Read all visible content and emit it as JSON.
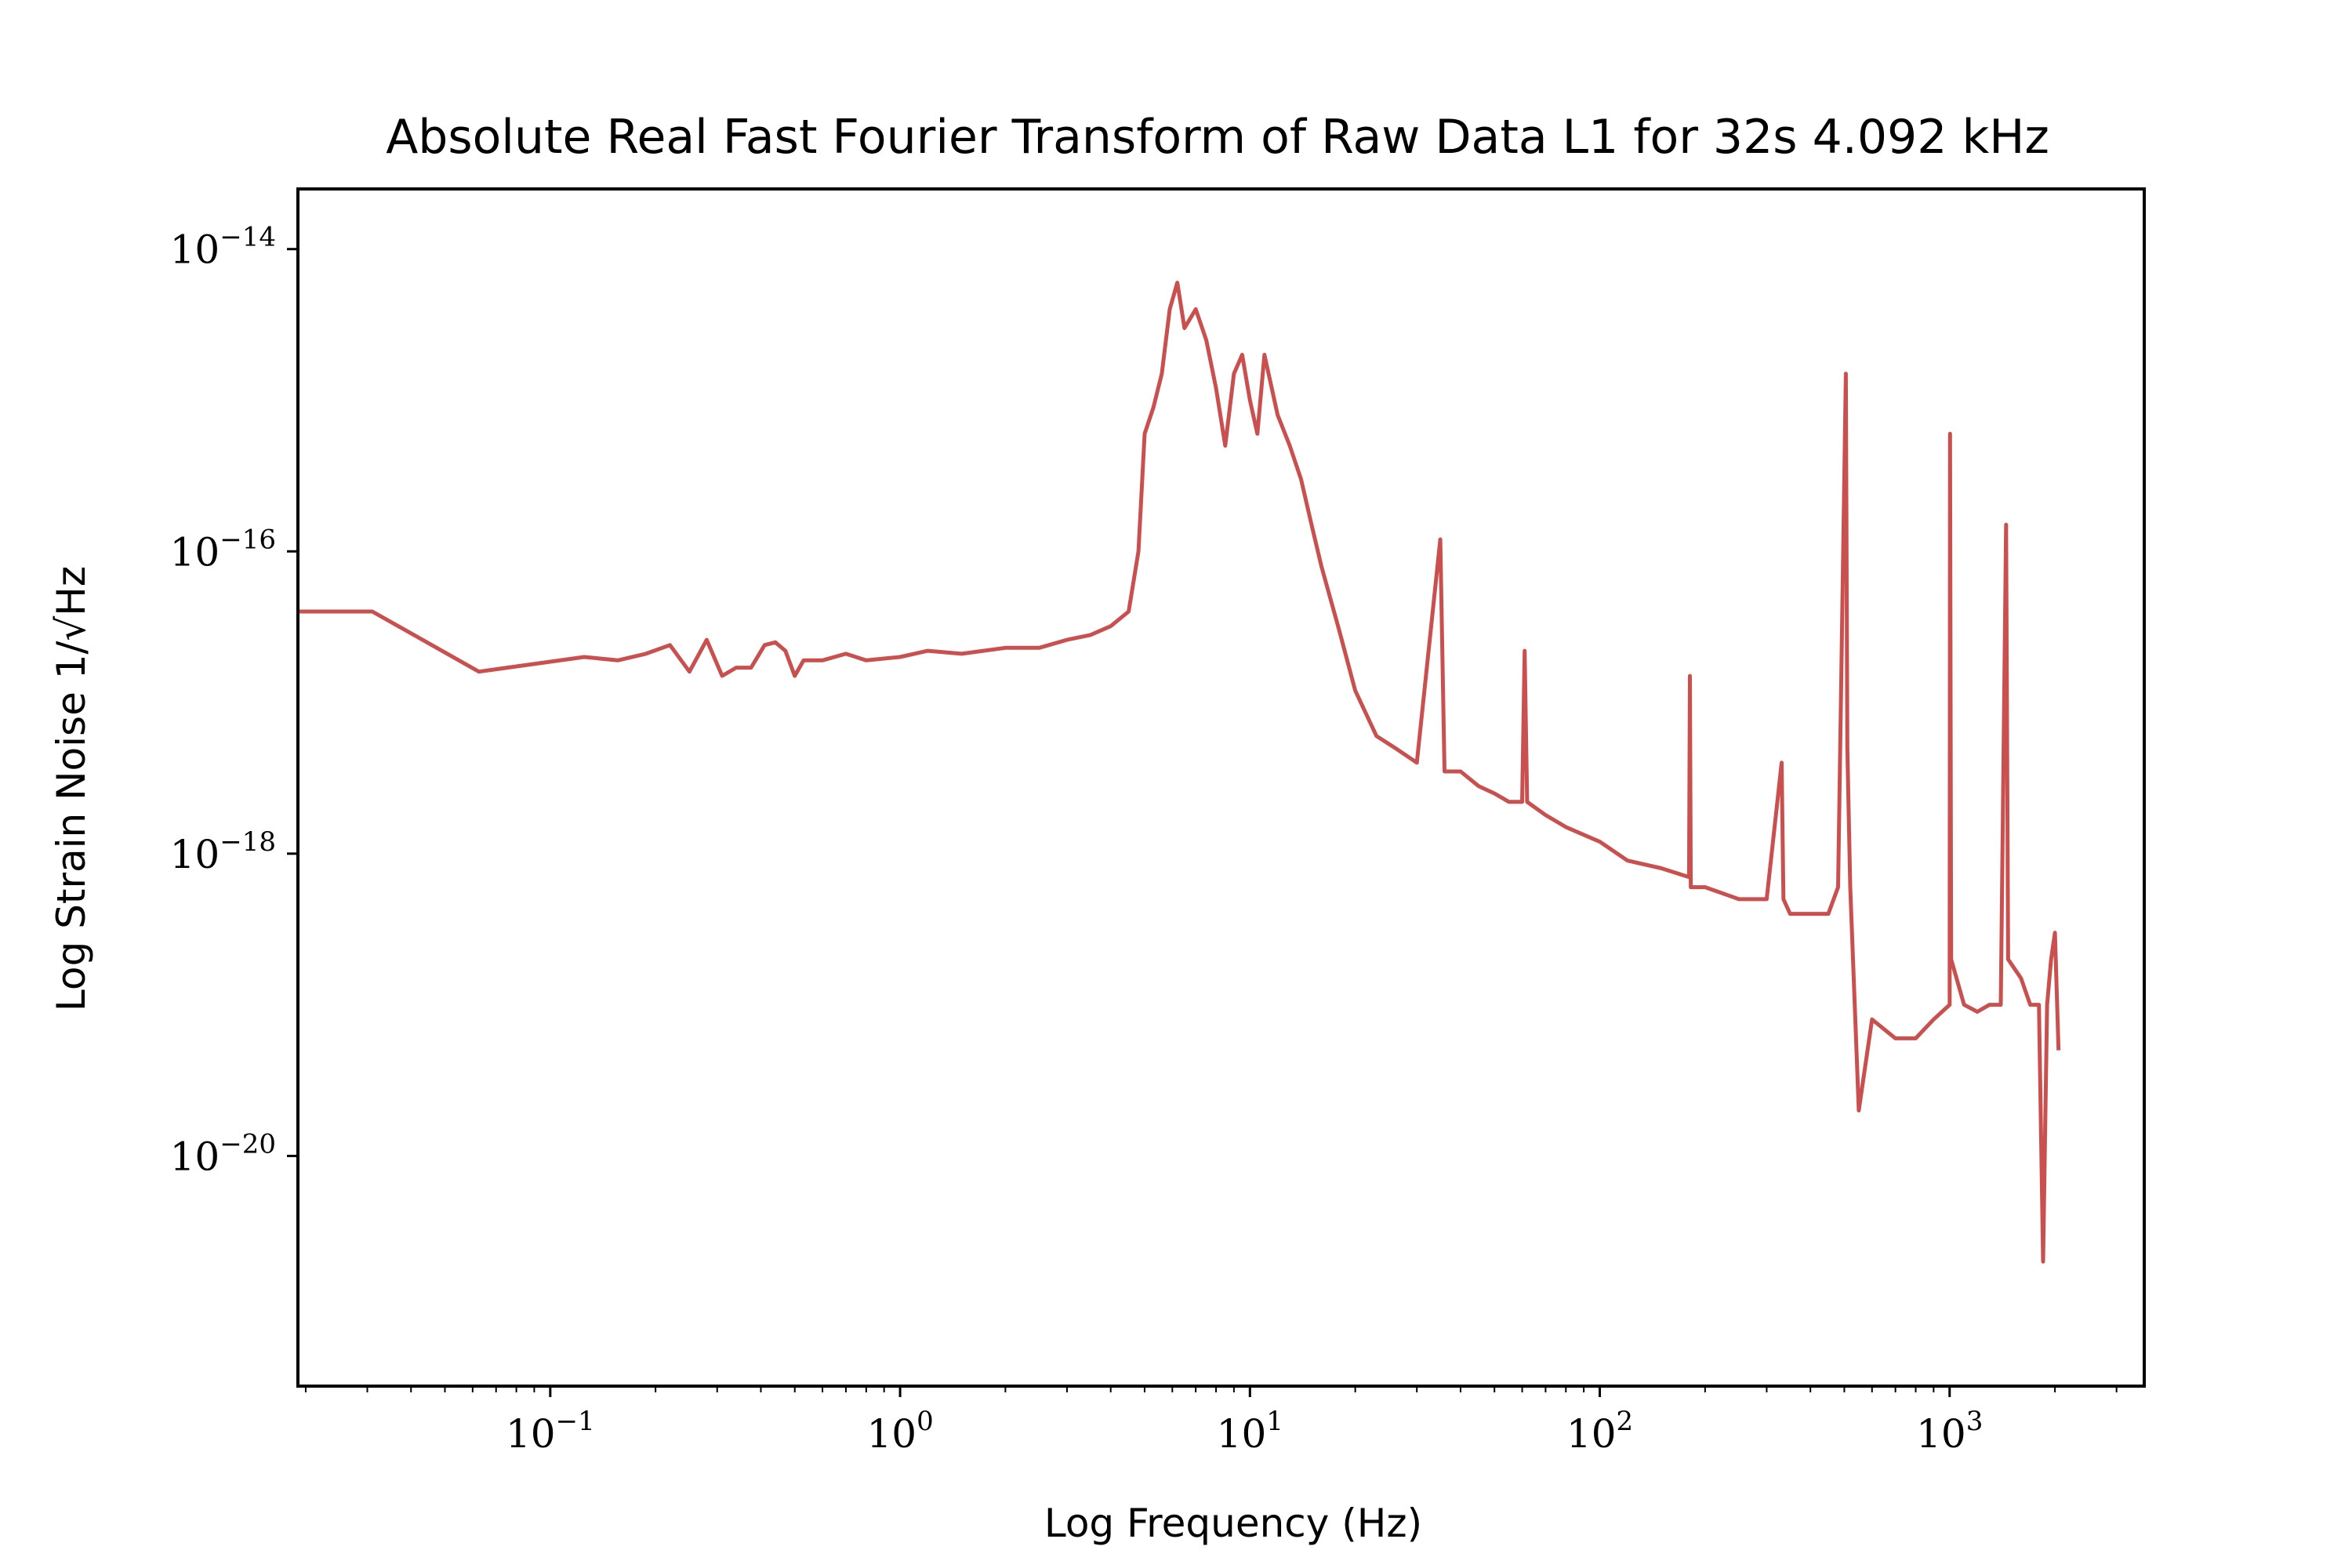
{
  "chart_data": {
    "type": "line",
    "title": "Absolute Real Fast Fourier Transform of Raw Data L1 for 32s 4.092 kHz",
    "xlabel": "Log Frequency (Hz)",
    "ylabel": "Log Strain Noise 1/√Hz",
    "x_scale": "log",
    "y_scale": "log",
    "xlim": [
      0.019,
      3600
    ],
    "ylim": [
      3e-22,
      2.5e-14
    ],
    "grid": false,
    "x_ticks": [
      {
        "value": 0.1,
        "base": "10",
        "exp": "−1"
      },
      {
        "value": 1,
        "base": "10",
        "exp": "0"
      },
      {
        "value": 10,
        "base": "10",
        "exp": "1"
      },
      {
        "value": 100,
        "base": "10",
        "exp": "2"
      },
      {
        "value": 1000,
        "base": "10",
        "exp": "3"
      }
    ],
    "y_ticks": [
      {
        "value": 1e-14,
        "base": "10",
        "exp": "−14"
      },
      {
        "value": 1e-16,
        "base": "10",
        "exp": "−16"
      },
      {
        "value": 1e-18,
        "base": "10",
        "exp": "−18"
      },
      {
        "value": 1e-20,
        "base": "10",
        "exp": "−20"
      }
    ],
    "series": [
      {
        "color": "#c9504f",
        "points": [
          [
            0.019,
            4e-17
          ],
          [
            0.031,
            4e-17
          ],
          [
            0.0625,
            1.6e-17
          ],
          [
            0.125,
            2e-17
          ],
          [
            0.156,
            1.9e-17
          ],
          [
            0.1875,
            2.1e-17
          ],
          [
            0.22,
            2.4e-17
          ],
          [
            0.25,
            1.6e-17
          ],
          [
            0.28,
            2.6e-17
          ],
          [
            0.31,
            1.5e-17
          ],
          [
            0.34,
            1.7e-17
          ],
          [
            0.375,
            1.7e-17
          ],
          [
            0.41,
            2.4e-17
          ],
          [
            0.44,
            2.5e-17
          ],
          [
            0.47,
            2.2e-17
          ],
          [
            0.5,
            1.5e-17
          ],
          [
            0.53,
            1.9e-17
          ],
          [
            0.6,
            1.9e-17
          ],
          [
            0.7,
            2.1e-17
          ],
          [
            0.8,
            1.9e-17
          ],
          [
            1.0,
            2e-17
          ],
          [
            1.2,
            2.2e-17
          ],
          [
            1.5,
            2.1e-17
          ],
          [
            2.0,
            2.3e-17
          ],
          [
            2.5,
            2.3e-17
          ],
          [
            3.0,
            2.6e-17
          ],
          [
            3.5,
            2.8e-17
          ],
          [
            4.0,
            3.2e-17
          ],
          [
            4.5,
            4e-17
          ],
          [
            4.8,
            1e-16
          ],
          [
            5.0,
            6e-16
          ],
          [
            5.3,
            9e-16
          ],
          [
            5.6,
            1.5e-15
          ],
          [
            5.9,
            4e-15
          ],
          [
            6.2,
            6e-15
          ],
          [
            6.5,
            3e-15
          ],
          [
            7.0,
            4e-15
          ],
          [
            7.5,
            2.5e-15
          ],
          [
            8.0,
            1.2e-15
          ],
          [
            8.5,
            5e-16
          ],
          [
            9.0,
            1.5e-15
          ],
          [
            9.5,
            2e-15
          ],
          [
            10.0,
            1e-15
          ],
          [
            10.5,
            6e-16
          ],
          [
            11.0,
            2e-15
          ],
          [
            12.0,
            8e-16
          ],
          [
            13.0,
            5e-16
          ],
          [
            14.0,
            3e-16
          ],
          [
            15.0,
            1.5e-16
          ],
          [
            16.0,
            8e-17
          ],
          [
            18.0,
            3e-17
          ],
          [
            20.0,
            1.2e-17
          ],
          [
            23.0,
            6e-18
          ],
          [
            26.0,
            5e-18
          ],
          [
            30.0,
            4e-18
          ],
          [
            35.0,
            1.2e-16
          ],
          [
            36.0,
            3.5e-18
          ],
          [
            40.0,
            3.5e-18
          ],
          [
            45.0,
            2.8e-18
          ],
          [
            50.0,
            2.5e-18
          ],
          [
            55.0,
            2.2e-18
          ],
          [
            60.0,
            2.2e-18
          ],
          [
            61.0,
            2.2e-17
          ],
          [
            62.0,
            2.2e-18
          ],
          [
            70.0,
            1.8e-18
          ],
          [
            80.0,
            1.5e-18
          ],
          [
            100.0,
            1.2e-18
          ],
          [
            120.0,
            9e-19
          ],
          [
            150.0,
            8e-19
          ],
          [
            180.0,
            7e-19
          ],
          [
            181.0,
            1.5e-17
          ],
          [
            182.0,
            6e-19
          ],
          [
            200.0,
            6e-19
          ],
          [
            250.0,
            5e-19
          ],
          [
            300.0,
            5e-19
          ],
          [
            331.0,
            4e-18
          ],
          [
            335.0,
            5e-19
          ],
          [
            350.0,
            4e-19
          ],
          [
            400.0,
            4e-19
          ],
          [
            450.0,
            4e-19
          ],
          [
            480.0,
            6e-19
          ],
          [
            500.0,
            3e-16
          ],
          [
            505.0,
            1.5e-15
          ],
          [
            510.0,
            5e-18
          ],
          [
            520.0,
            6e-19
          ],
          [
            550.0,
            2e-20
          ],
          [
            600.0,
            8e-20
          ],
          [
            700.0,
            6e-20
          ],
          [
            800.0,
            6e-20
          ],
          [
            900.0,
            8e-20
          ],
          [
            1000.0,
            1e-19
          ],
          [
            1003.0,
            6e-16
          ],
          [
            1010.0,
            2e-19
          ],
          [
            1100.0,
            1e-19
          ],
          [
            1200.0,
            9e-20
          ],
          [
            1300.0,
            1e-19
          ],
          [
            1400.0,
            1e-19
          ],
          [
            1450.0,
            1.5e-16
          ],
          [
            1470.0,
            2e-19
          ],
          [
            1600.0,
            1.5e-19
          ],
          [
            1700.0,
            1e-19
          ],
          [
            1800.0,
            1e-19
          ],
          [
            1850.0,
            2e-21
          ],
          [
            1900.0,
            1e-19
          ],
          [
            1950.0,
            2e-19
          ],
          [
            2000.0,
            3e-19
          ],
          [
            2048.0,
            5e-20
          ]
        ]
      }
    ]
  },
  "chart_style": {
    "line_color": "#c9504f",
    "axes_color": "#000000",
    "background": "#ffffff"
  }
}
